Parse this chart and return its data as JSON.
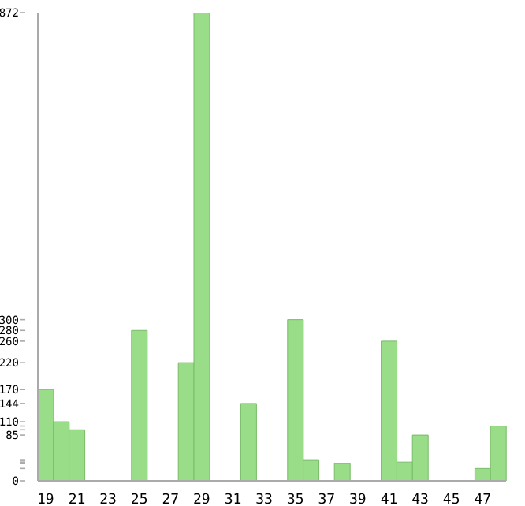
{
  "chart_data": {
    "type": "bar",
    "categories": [
      "19",
      null,
      "21",
      null,
      "23",
      null,
      "25",
      null,
      "27",
      null,
      "29",
      null,
      "31",
      null,
      "33",
      null,
      "35",
      null,
      "37",
      null,
      "39",
      null,
      "41",
      null,
      "43",
      null,
      "45",
      null,
      "47",
      null
    ],
    "values": [
      170,
      110,
      95,
      0,
      0,
      0,
      280,
      0,
      0,
      220,
      872,
      0,
      0,
      144,
      0,
      0,
      300,
      38,
      0,
      32,
      0,
      0,
      260,
      35,
      85,
      0,
      0,
      0,
      23,
      102
    ],
    "color": "#99dd88",
    "ylim": [
      0,
      872
    ],
    "yticks": [
      0,
      {
        "value": 23,
        "label": null
      },
      {
        "value": 32,
        "label": null
      },
      {
        "value": 35,
        "label": null
      },
      {
        "value": 38,
        "label": null
      },
      85,
      {
        "value": 95,
        "label": null
      },
      {
        "value": 102,
        "label": null
      },
      110,
      144,
      170,
      220,
      260,
      280,
      300,
      872
    ],
    "grid": false
  }
}
